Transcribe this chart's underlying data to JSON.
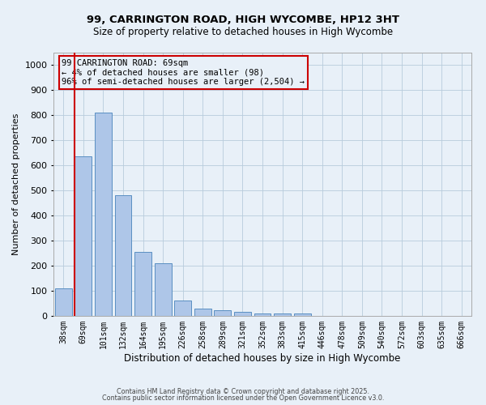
{
  "title": "99, CARRINGTON ROAD, HIGH WYCOMBE, HP12 3HT",
  "subtitle": "Size of property relative to detached houses in High Wycombe",
  "xlabel": "Distribution of detached houses by size in High Wycombe",
  "ylabel": "Number of detached properties",
  "bar_labels": [
    "38sqm",
    "69sqm",
    "101sqm",
    "132sqm",
    "164sqm",
    "195sqm",
    "226sqm",
    "258sqm",
    "289sqm",
    "321sqm",
    "352sqm",
    "383sqm",
    "415sqm",
    "446sqm",
    "478sqm",
    "509sqm",
    "540sqm",
    "572sqm",
    "603sqm",
    "635sqm",
    "666sqm"
  ],
  "bar_values": [
    110,
    635,
    810,
    480,
    255,
    210,
    62,
    28,
    22,
    15,
    10,
    9,
    9,
    0,
    0,
    0,
    0,
    0,
    0,
    0,
    0
  ],
  "bar_color": "#aec6e8",
  "bar_edge_color": "#5a8fc2",
  "highlight_index": 1,
  "highlight_color": "#cc0000",
  "ylim": [
    0,
    1050
  ],
  "yticks": [
    0,
    100,
    200,
    300,
    400,
    500,
    600,
    700,
    800,
    900,
    1000
  ],
  "annotation_title": "99 CARRINGTON ROAD: 69sqm",
  "annotation_line2": "← 4% of detached houses are smaller (98)",
  "annotation_line3": "96% of semi-detached houses are larger (2,504) →",
  "annotation_box_color": "#cc0000",
  "grid_color": "#b8ccdc",
  "bg_color": "#e8f0f8",
  "footer1": "Contains HM Land Registry data © Crown copyright and database right 2025.",
  "footer2": "Contains public sector information licensed under the Open Government Licence v3.0."
}
